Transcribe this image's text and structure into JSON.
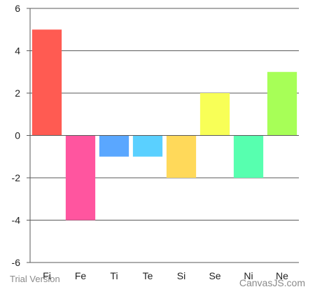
{
  "chart_data": {
    "type": "bar",
    "categories": [
      "Fi",
      "Fe",
      "Ti",
      "Te",
      "Si",
      "Se",
      "Ni",
      "Ne"
    ],
    "values": [
      5,
      -4,
      -1,
      -1,
      -2,
      2,
      -2,
      3
    ],
    "colors": [
      "#FF5B52",
      "#FF559F",
      "#5AA7FF",
      "#5AD0FF",
      "#FFD95A",
      "#F8FF57",
      "#57FFAF",
      "#A7FF57"
    ],
    "ylim": [
      -6,
      6
    ],
    "yticks": [
      -6,
      -4,
      -2,
      0,
      2,
      4,
      6
    ],
    "grid": true,
    "title": "",
    "xlabel": "",
    "ylabel": ""
  },
  "watermarks": {
    "trial": "Trial Version",
    "brand": "CanvasJS.com"
  }
}
